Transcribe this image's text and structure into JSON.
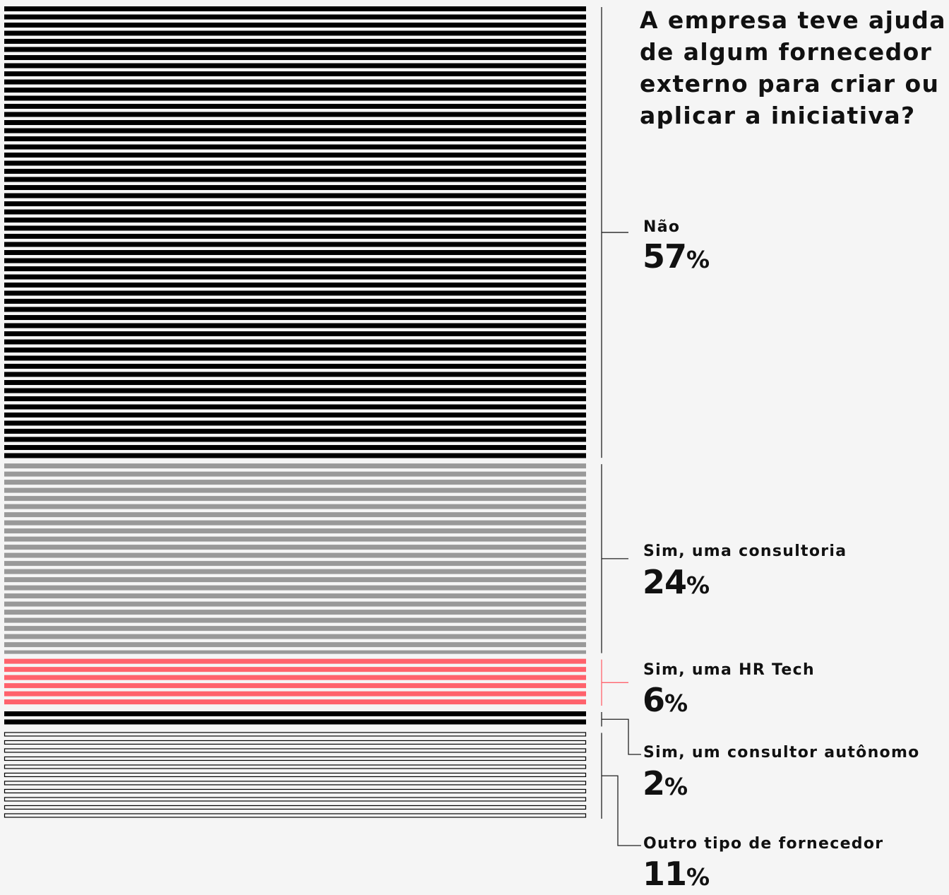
{
  "chart_data": {
    "type": "bar",
    "title": "A empresa teve ajuda\nde algum fornecedor\nexterno  para criar ou\naplicar a iniciativa?",
    "unit": "%",
    "categories": [
      "Não",
      "Sim, uma consultoria",
      "Sim, uma HR Tech",
      "Sim, um consultor autônomo",
      "Outro tipo de fornecedor"
    ],
    "values": [
      57,
      24,
      6,
      2,
      11
    ],
    "colors": [
      "#000000",
      "#999999",
      "#ff626c",
      "#000000",
      "#000000"
    ],
    "styles": [
      "solid",
      "solid",
      "solid",
      "solid",
      "outline"
    ]
  }
}
